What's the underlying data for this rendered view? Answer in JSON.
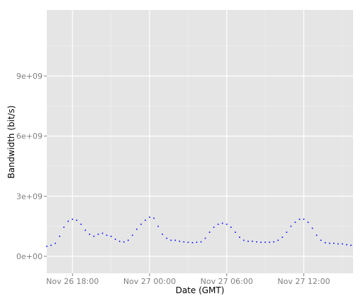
{
  "chart_data": {
    "type": "scatter",
    "title": "",
    "xlabel": "Date (GMT)",
    "ylabel": "Bandwidth (bit/s)",
    "x_unit": "hours",
    "xlim": [
      "Nov 26 16:00",
      "Nov 27 15:50"
    ],
    "ylim": [
      -850000000,
      12300000000
    ],
    "x_ticks": [
      {
        "value": "Nov 26 18:00",
        "label": "Nov 26 18:00"
      },
      {
        "value": "Nov 27 00:00",
        "label": "Nov 27 00:00"
      },
      {
        "value": "Nov 27 06:00",
        "label": "Nov 27 06:00"
      },
      {
        "value": "Nov 27 12:00",
        "label": "Nov 27 12:00"
      }
    ],
    "y_ticks": [
      {
        "value": 0,
        "label": "0e+00"
      },
      {
        "value": 3000000000,
        "label": "3e+09"
      },
      {
        "value": 6000000000,
        "label": "6e+09"
      },
      {
        "value": 9000000000,
        "label": "9e+09"
      }
    ],
    "grid": true,
    "legend": "none",
    "series": [
      {
        "color": "#0000ff",
        "points": [
          [
            "Nov 26 16:00",
            500000000.0
          ],
          [
            "Nov 26 16:20",
            550000000.0
          ],
          [
            "Nov 26 16:40",
            650000000.0
          ],
          [
            "Nov 26 17:00",
            1000000000.0
          ],
          [
            "Nov 26 17:20",
            1450000000.0
          ],
          [
            "Nov 26 17:40",
            1750000000.0
          ],
          [
            "Nov 26 18:00",
            1850000000.0
          ],
          [
            "Nov 26 18:20",
            1800000000.0
          ],
          [
            "Nov 26 18:40",
            1600000000.0
          ],
          [
            "Nov 26 19:00",
            1300000000.0
          ],
          [
            "Nov 26 19:20",
            1100000000.0
          ],
          [
            "Nov 26 19:40",
            1000000000.0
          ],
          [
            "Nov 26 20:00",
            1100000000.0
          ],
          [
            "Nov 26 20:20",
            1150000000.0
          ],
          [
            "Nov 26 20:40",
            1050000000.0
          ],
          [
            "Nov 26 21:00",
            1000000000.0
          ],
          [
            "Nov 26 21:20",
            850000000.0
          ],
          [
            "Nov 26 21:40",
            750000000.0
          ],
          [
            "Nov 26 22:00",
            720000000.0
          ],
          [
            "Nov 26 22:20",
            800000000.0
          ],
          [
            "Nov 26 22:40",
            1050000000.0
          ],
          [
            "Nov 26 23:00",
            1350000000.0
          ],
          [
            "Nov 26 23:20",
            1600000000.0
          ],
          [
            "Nov 26 23:40",
            1800000000.0
          ],
          [
            "Nov 27 00:00",
            1950000000.0
          ],
          [
            "Nov 27 00:20",
            1900000000.0
          ],
          [
            "Nov 27 00:40",
            1500000000.0
          ],
          [
            "Nov 27 01:00",
            1100000000.0
          ],
          [
            "Nov 27 01:20",
            900000000.0
          ],
          [
            "Nov 27 01:40",
            800000000.0
          ],
          [
            "Nov 27 02:00",
            800000000.0
          ],
          [
            "Nov 27 02:20",
            750000000.0
          ],
          [
            "Nov 27 02:40",
            720000000.0
          ],
          [
            "Nov 27 03:00",
            700000000.0
          ],
          [
            "Nov 27 03:20",
            680000000.0
          ],
          [
            "Nov 27 03:40",
            700000000.0
          ],
          [
            "Nov 27 04:00",
            720000000.0
          ],
          [
            "Nov 27 04:20",
            900000000.0
          ],
          [
            "Nov 27 04:40",
            1200000000.0
          ],
          [
            "Nov 27 05:00",
            1450000000.0
          ],
          [
            "Nov 27 05:20",
            1600000000.0
          ],
          [
            "Nov 27 05:40",
            1650000000.0
          ],
          [
            "Nov 27 06:00",
            1600000000.0
          ],
          [
            "Nov 27 06:20",
            1450000000.0
          ],
          [
            "Nov 27 06:40",
            1200000000.0
          ],
          [
            "Nov 27 07:00",
            950000000.0
          ],
          [
            "Nov 27 07:20",
            800000000.0
          ],
          [
            "Nov 27 07:40",
            750000000.0
          ],
          [
            "Nov 27 08:00",
            750000000.0
          ],
          [
            "Nov 27 08:20",
            720000000.0
          ],
          [
            "Nov 27 08:40",
            700000000.0
          ],
          [
            "Nov 27 09:00",
            700000000.0
          ],
          [
            "Nov 27 09:20",
            700000000.0
          ],
          [
            "Nov 27 09:40",
            720000000.0
          ],
          [
            "Nov 27 10:00",
            800000000.0
          ],
          [
            "Nov 27 10:20",
            950000000.0
          ],
          [
            "Nov 27 10:40",
            1200000000.0
          ],
          [
            "Nov 27 11:00",
            1500000000.0
          ],
          [
            "Nov 27 11:20",
            1700000000.0
          ],
          [
            "Nov 27 11:40",
            1850000000.0
          ],
          [
            "Nov 27 12:00",
            1850000000.0
          ],
          [
            "Nov 27 12:20",
            1700000000.0
          ],
          [
            "Nov 27 12:40",
            1400000000.0
          ],
          [
            "Nov 27 13:00",
            1050000000.0
          ],
          [
            "Nov 27 13:20",
            800000000.0
          ],
          [
            "Nov 27 13:40",
            680000000.0
          ],
          [
            "Nov 27 14:00",
            650000000.0
          ],
          [
            "Nov 27 14:20",
            650000000.0
          ],
          [
            "Nov 27 14:40",
            620000000.0
          ],
          [
            "Nov 27 15:00",
            620000000.0
          ],
          [
            "Nov 27 15:20",
            580000000.0
          ],
          [
            "Nov 27 15:40",
            550000000.0
          ]
        ]
      }
    ]
  },
  "colors": {
    "panel_background": "#e5e5e5",
    "grid_major": "#ffffff",
    "grid_minor": "#f2f2f2",
    "point": "#0000ff",
    "tick_text": "#7f7f7f",
    "axis_text": "#000000"
  }
}
